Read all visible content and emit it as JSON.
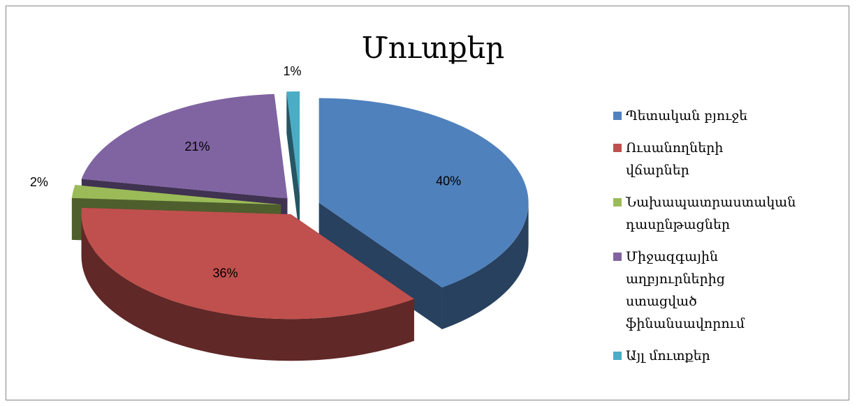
{
  "chart_data": {
    "type": "pie3d",
    "title": "Մուտքեր",
    "categories": [
      "Պետական բյուջե",
      "Ուսանողների վճարներ",
      "Նախապատրաստական դասընթացներ",
      "Միջազգային աղբյուրներից ստացված ֆինանսավորում",
      "Այլ մուտքեր"
    ],
    "values": [
      40,
      36,
      2,
      21,
      1
    ],
    "value_labels": [
      "40%",
      "36%",
      "2%",
      "21%",
      "1%"
    ],
    "colors": [
      "#4f81bd",
      "#c0504d",
      "#9bbb59",
      "#8064a2",
      "#4bacc6"
    ],
    "legend": "right"
  }
}
